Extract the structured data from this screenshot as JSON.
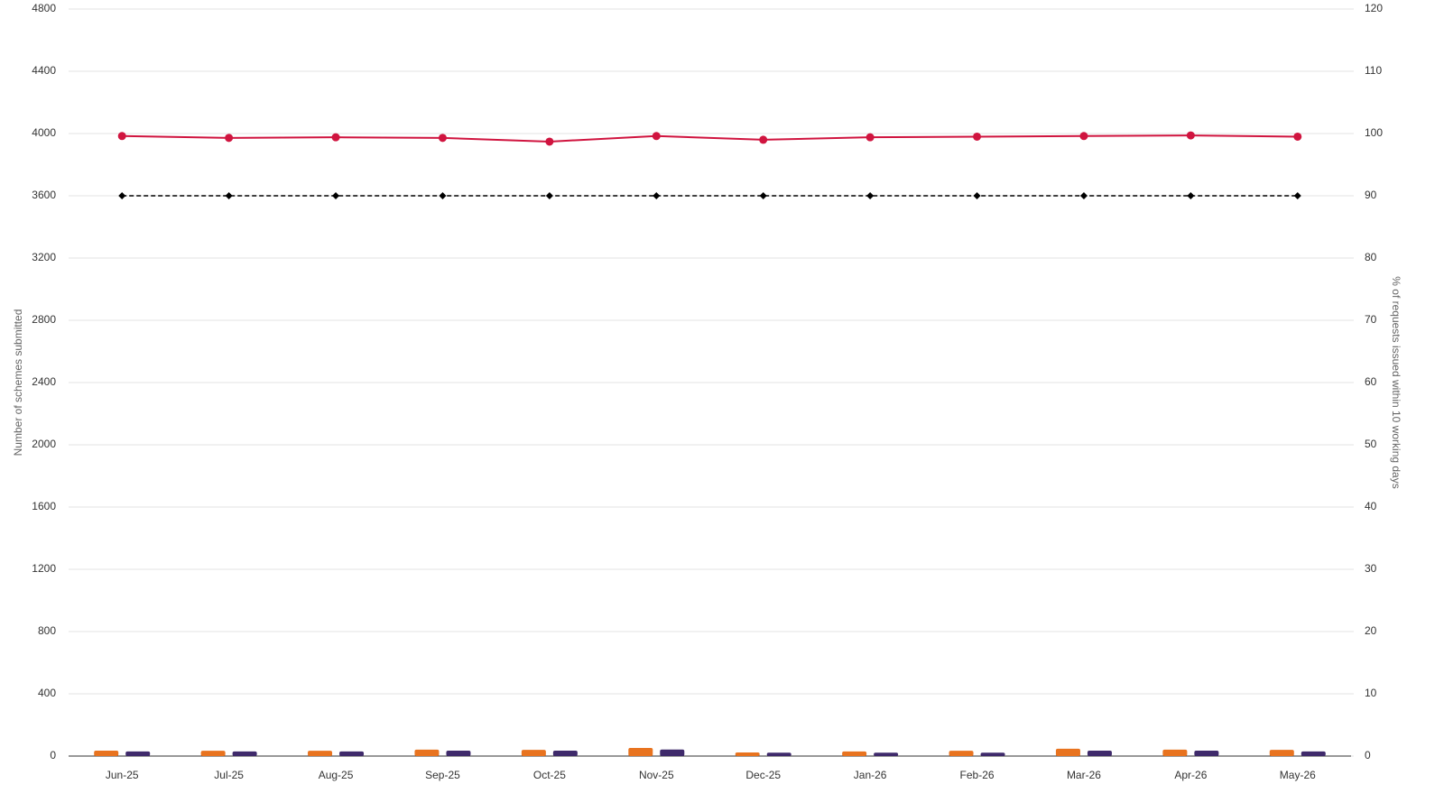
{
  "chart_data": {
    "type": "combo",
    "y_label": "Number of schemes submitted",
    "y2_label": "% of requests issued within 10 working days",
    "categories": [
      "Jun-25",
      "Jul-25",
      "Aug-25",
      "Sep-25",
      "Oct-25",
      "Nov-25",
      "Dec-25",
      "Jan-26",
      "Feb-26",
      "Mar-26",
      "Apr-26",
      "May-26"
    ],
    "series": [
      {
        "type": "bar",
        "color": "#e8731f",
        "values": [
          35,
          34,
          34,
          41,
          40,
          52,
          23,
          30,
          34,
          47,
          41,
          40
        ]
      },
      {
        "type": "bar",
        "color": "#3f2a6b",
        "values": [
          30,
          30,
          30,
          35,
          35,
          42,
          22,
          22,
          22,
          35,
          35,
          30
        ]
      },
      {
        "type": "line",
        "axis": "y2",
        "color": "#d0143f",
        "marker": "circle",
        "values": [
          99.6,
          99.3,
          99.4,
          99.3,
          98.7,
          99.6,
          99.0,
          99.4,
          99.5,
          99.6,
          99.7,
          99.5
        ]
      },
      {
        "type": "line",
        "axis": "y2",
        "color": "#000000",
        "marker": "diamond",
        "dashed": true,
        "values": [
          90,
          90,
          90,
          90,
          90,
          90,
          90,
          90,
          90,
          90,
          90,
          90
        ]
      }
    ],
    "ylim": [
      0,
      4800
    ],
    "yticks": [
      0,
      400,
      800,
      1200,
      1600,
      2000,
      2400,
      2800,
      3200,
      3600,
      4000,
      4400,
      4800
    ],
    "y2lim": [
      0,
      120
    ],
    "y2ticks": [
      0,
      10,
      20,
      30,
      40,
      50,
      60,
      70,
      80,
      90,
      100,
      110,
      120
    ],
    "grid": true
  }
}
